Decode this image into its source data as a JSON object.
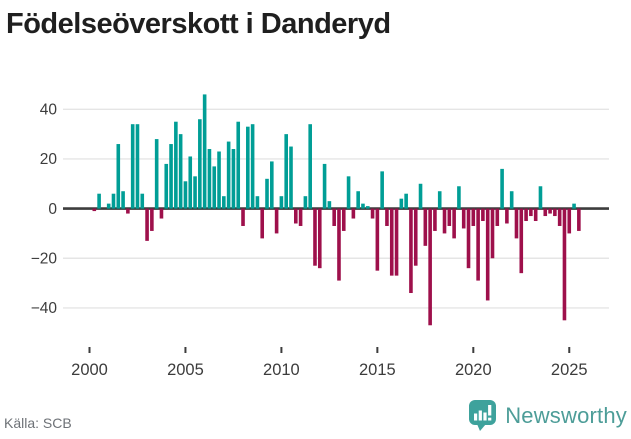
{
  "title": "Födelseöverskott i Danderyd",
  "footer": {
    "source": "Källa: SCB",
    "brand": "Newsworthy"
  },
  "colors": {
    "positive": "#009E96",
    "negative": "#9E104B",
    "zero_line": "#3D3D3D",
    "grid": "#E5E5E5",
    "tick": "#3D3D3D",
    "axis_text": "#3C3C3C",
    "brand_teal": "#3EA29C",
    "brand_text": "#4D9D98"
  },
  "chart_data": {
    "type": "bar",
    "title": "Födelseöverskott i Danderyd",
    "xlabel": "",
    "ylabel": "",
    "frequency": "quarterly",
    "grid": "horizontal",
    "legend": "none",
    "ylim": [
      -52,
      50
    ],
    "y_ticks": [
      {
        "v": 40,
        "label": "40"
      },
      {
        "v": 20,
        "label": "20"
      },
      {
        "v": 0,
        "label": "0"
      },
      {
        "v": -20,
        "label": "−20"
      },
      {
        "v": -40,
        "label": "−40"
      }
    ],
    "x_ticks": [
      {
        "year": 2000,
        "label": "2000"
      },
      {
        "year": 2005,
        "label": "2005"
      },
      {
        "year": 2010,
        "label": "2010"
      },
      {
        "year": 2015,
        "label": "2015"
      },
      {
        "year": 2020,
        "label": "2020"
      },
      {
        "year": 2025,
        "label": "2025"
      }
    ],
    "categories": [
      "2000Q1",
      "2000Q2",
      "2000Q3",
      "2000Q4",
      "2001Q1",
      "2001Q2",
      "2001Q3",
      "2001Q4",
      "2002Q1",
      "2002Q2",
      "2002Q3",
      "2002Q4",
      "2003Q1",
      "2003Q2",
      "2003Q3",
      "2003Q4",
      "2004Q1",
      "2004Q2",
      "2004Q3",
      "2004Q4",
      "2005Q1",
      "2005Q2",
      "2005Q3",
      "2005Q4",
      "2006Q1",
      "2006Q2",
      "2006Q3",
      "2006Q4",
      "2007Q1",
      "2007Q2",
      "2007Q3",
      "2007Q4",
      "2008Q1",
      "2008Q2",
      "2008Q3",
      "2008Q4",
      "2009Q1",
      "2009Q2",
      "2009Q3",
      "2009Q4",
      "2010Q1",
      "2010Q2",
      "2010Q3",
      "2010Q4",
      "2011Q1",
      "2011Q2",
      "2011Q3",
      "2011Q4",
      "2012Q1",
      "2012Q2",
      "2012Q3",
      "2012Q4",
      "2013Q1",
      "2013Q2",
      "2013Q3",
      "2013Q4",
      "2014Q1",
      "2014Q2",
      "2014Q3",
      "2014Q4",
      "2015Q1",
      "2015Q2",
      "2015Q3",
      "2015Q4",
      "2016Q1",
      "2016Q2",
      "2016Q3",
      "2016Q4",
      "2017Q1",
      "2017Q2",
      "2017Q3",
      "2017Q4",
      "2018Q1",
      "2018Q2",
      "2018Q3",
      "2018Q4",
      "2019Q1",
      "2019Q2",
      "2019Q3",
      "2019Q4",
      "2020Q1",
      "2020Q2",
      "2020Q3",
      "2020Q4",
      "2021Q1",
      "2021Q2",
      "2021Q3",
      "2021Q4",
      "2022Q1",
      "2022Q2",
      "2022Q3",
      "2022Q4",
      "2023Q1",
      "2023Q2",
      "2023Q3",
      "2023Q4",
      "2024Q1",
      "2024Q2",
      "2024Q3",
      "2024Q4",
      "2025Q1",
      "2025Q2",
      "2025Q3"
    ],
    "values": [
      0,
      -1,
      6,
      0,
      2,
      6,
      26,
      7,
      -2,
      34,
      34,
      6,
      -13,
      -9,
      28,
      -4,
      18,
      26,
      35,
      30,
      11,
      21,
      13,
      36,
      46,
      24,
      17,
      23,
      5,
      27,
      24,
      35,
      -7,
      33,
      34,
      5,
      -12,
      12,
      19,
      -10,
      5,
      30,
      25,
      -6,
      -7,
      5,
      34,
      -23,
      -24,
      18,
      3,
      -7,
      -29,
      -9,
      13,
      -4,
      7,
      2,
      1,
      -4,
      -25,
      15,
      -7,
      -27,
      -27,
      4,
      6,
      -34,
      -23,
      10,
      -15,
      -47,
      -9,
      7,
      -10,
      -7,
      -12,
      9,
      -8,
      -24,
      -7,
      -29,
      -5,
      -37,
      -20,
      -7,
      16,
      -6,
      7,
      -12,
      -26,
      -5,
      -3,
      -5,
      9,
      -3,
      -2,
      -3,
      -7,
      -45,
      -10,
      2,
      -9
    ]
  }
}
